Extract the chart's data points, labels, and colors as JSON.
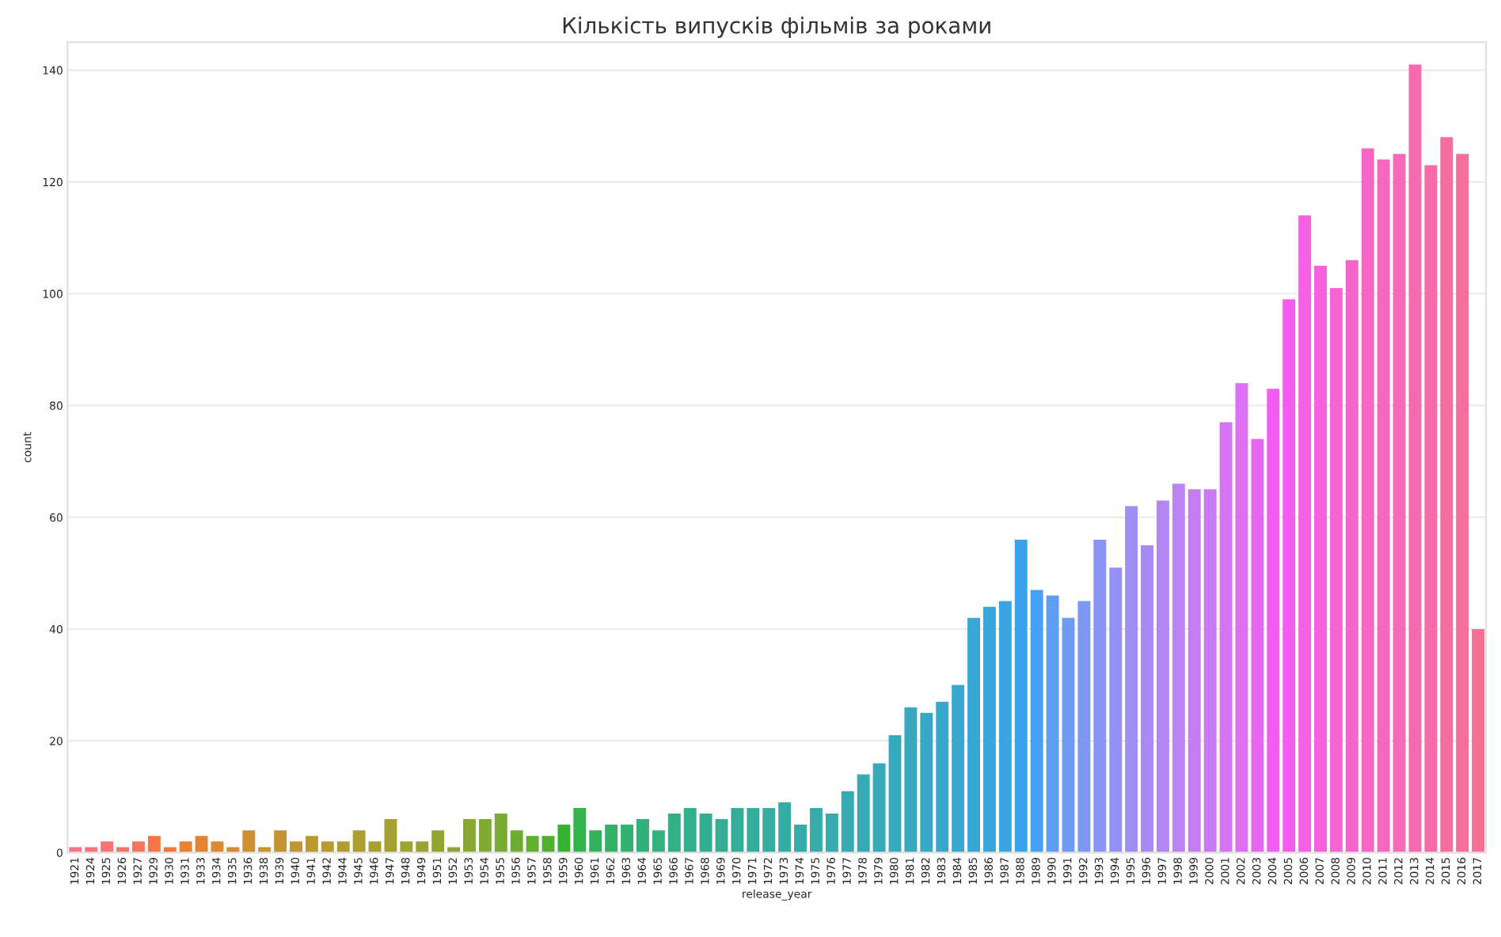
{
  "chart_data": {
    "type": "bar",
    "title": "Кількість випусків фільмів за роками",
    "xlabel": "release_year",
    "ylabel": "count",
    "categories": [
      "1921",
      "1924",
      "1925",
      "1926",
      "1927",
      "1929",
      "1930",
      "1931",
      "1933",
      "1934",
      "1935",
      "1936",
      "1938",
      "1939",
      "1940",
      "1941",
      "1942",
      "1944",
      "1945",
      "1946",
      "1947",
      "1948",
      "1949",
      "1951",
      "1952",
      "1953",
      "1954",
      "1955",
      "1956",
      "1957",
      "1958",
      "1959",
      "1960",
      "1961",
      "1962",
      "1963",
      "1964",
      "1965",
      "1966",
      "1967",
      "1968",
      "1969",
      "1970",
      "1971",
      "1972",
      "1973",
      "1974",
      "1975",
      "1976",
      "1977",
      "1978",
      "1979",
      "1980",
      "1981",
      "1982",
      "1983",
      "1984",
      "1985",
      "1986",
      "1987",
      "1988",
      "1989",
      "1990",
      "1991",
      "1992",
      "1993",
      "1994",
      "1995",
      "1996",
      "1997",
      "1998",
      "1999",
      "2000",
      "2001",
      "2002",
      "2003",
      "2004",
      "2005",
      "2006",
      "2007",
      "2008",
      "2009",
      "2010",
      "2011",
      "2012",
      "2013",
      "2014",
      "2015",
      "2016",
      "2017"
    ],
    "values": [
      1,
      1,
      2,
      1,
      2,
      3,
      1,
      2,
      3,
      2,
      1,
      4,
      1,
      4,
      2,
      3,
      2,
      2,
      4,
      2,
      6,
      2,
      2,
      4,
      1,
      6,
      6,
      7,
      4,
      3,
      3,
      5,
      8,
      4,
      5,
      5,
      6,
      4,
      7,
      8,
      7,
      6,
      8,
      8,
      8,
      9,
      5,
      8,
      7,
      11,
      14,
      16,
      21,
      26,
      25,
      27,
      30,
      42,
      44,
      45,
      56,
      47,
      46,
      42,
      45,
      56,
      51,
      62,
      55,
      63,
      66,
      65,
      65,
      77,
      84,
      74,
      83,
      99,
      114,
      105,
      101,
      106,
      126,
      124,
      125,
      141,
      123,
      128,
      125,
      40
    ],
    "colors": [
      "#f77189",
      "#f7727f",
      "#f77375",
      "#f77468",
      "#f77559",
      "#f87644",
      "#f37a32",
      "#ea8032",
      "#e38532",
      "#dc8932",
      "#d58c32",
      "#d08f32",
      "#ca9232",
      "#c59432",
      "#c09632",
      "#bb9832",
      "#b79a32",
      "#b29b32",
      "#ae9d31",
      "#a99e31",
      "#a4a031",
      "#9fa131",
      "#9aa331",
      "#94a431",
      "#8ea631",
      "#87a831",
      "#80a931",
      "#77ab31",
      "#6dad31",
      "#61af31",
      "#50b131",
      "#36b331",
      "#32b34b",
      "#32b25c",
      "#33b169",
      "#33b172",
      "#33b07a",
      "#34b081",
      "#34af87",
      "#34af8c",
      "#34ae91",
      "#35ae95",
      "#35ae99",
      "#35ad9d",
      "#35ada1",
      "#36ada4",
      "#36aca8",
      "#36acab",
      "#36acae",
      "#37abb2",
      "#37abb5",
      "#37aab9",
      "#37aabd",
      "#38a9c1",
      "#38a9c5",
      "#38a8ca",
      "#39a8cf",
      "#39a7d5",
      "#3aa6db",
      "#3ba5e3",
      "#3ba3ec",
      "#44a1f4",
      "#5d9ef4",
      "#6e9bf4",
      "#7d98f4",
      "#8a94f4",
      "#9591f4",
      "#9f8ef4",
      "#a98af4",
      "#b287f4",
      "#bb83f4",
      "#c37ef4",
      "#cc7af4",
      "#d574f4",
      "#de6ef4",
      "#e866f4",
      "#f25df4",
      "#f45ded",
      "#f560e4",
      "#f562db",
      "#f564d4",
      "#f565cc",
      "#f667c5",
      "#f668be",
      "#f66ab7",
      "#f66bb0",
      "#f66caa",
      "#f66da2",
      "#f66e9b",
      "#f76f93"
    ],
    "ylim": [
      0,
      145
    ],
    "yticks": [
      0,
      20,
      40,
      60,
      80,
      100,
      120,
      140
    ],
    "grid": "y"
  }
}
